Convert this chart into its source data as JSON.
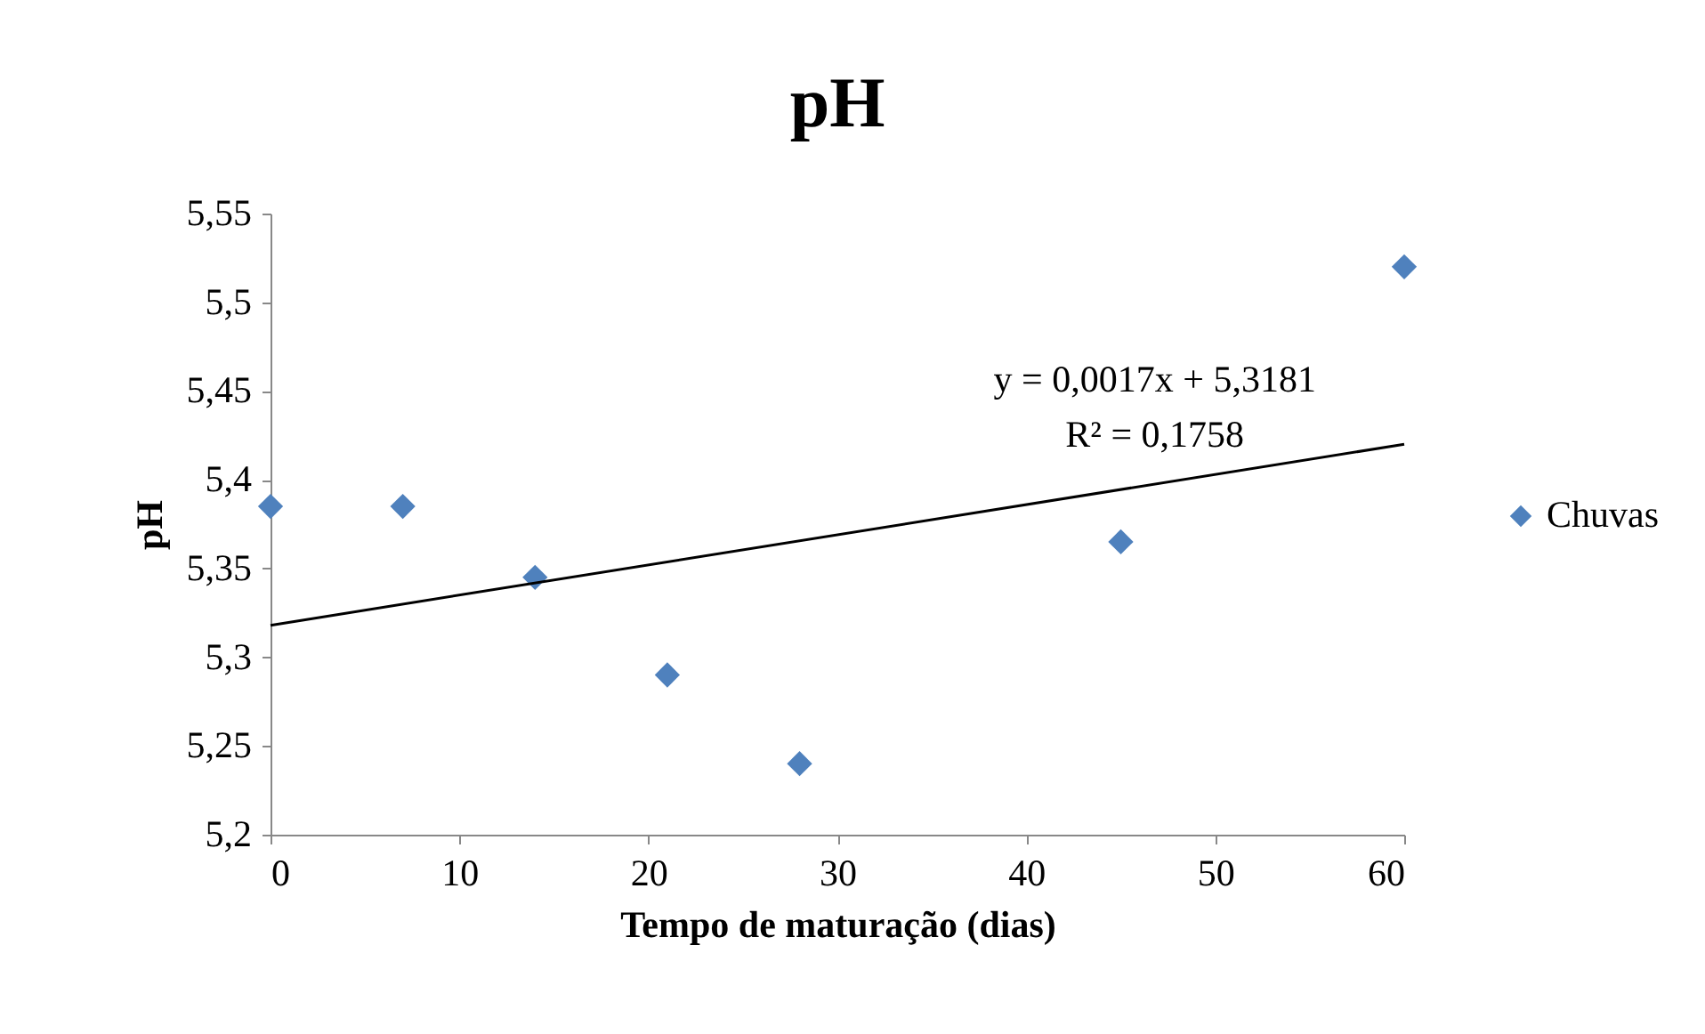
{
  "chart_data": {
    "type": "scatter",
    "title": "pH",
    "xlabel": "Tempo de maturação (dias)",
    "ylabel": "pH",
    "x": [
      0,
      7,
      14,
      21,
      28,
      45,
      60
    ],
    "series": [
      {
        "name": "Chuvas",
        "color": "#4f81bd",
        "values": [
          5.385,
          5.385,
          5.345,
          5.29,
          5.24,
          5.365,
          5.52
        ]
      },
      {
        "type": "line",
        "marker": "none",
        "color": "#000000",
        "x": [
          0,
          60
        ],
        "values": [
          5.318,
          5.42
        ]
      }
    ],
    "xlim": [
      0,
      60
    ],
    "xticks": [
      0,
      10,
      20,
      30,
      40,
      50,
      60
    ],
    "ylim": [
      5.2,
      5.55
    ],
    "yticks": [
      {
        "value": 5.2,
        "label": "5,2"
      },
      {
        "value": 5.25,
        "label": "5,25"
      },
      {
        "value": 5.3,
        "label": "5,3"
      },
      {
        "value": 5.35,
        "label": "5,35"
      },
      {
        "value": 5.4,
        "label": "5,4"
      },
      {
        "value": 5.45,
        "label": "5,45"
      },
      {
        "value": 5.5,
        "label": "5,5"
      },
      {
        "value": 5.55,
        "label": "5,55"
      }
    ],
    "annotations": [
      "y = 0,0017x + 5,3181",
      "R² = 0,1758"
    ],
    "marker": "diamond",
    "grid": false,
    "legend": "right"
  }
}
